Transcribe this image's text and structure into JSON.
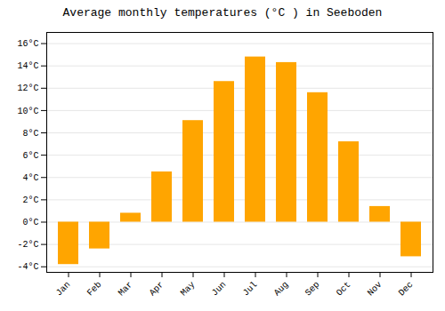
{
  "chart_data": {
    "type": "bar",
    "title": "Average monthly temperatures (°C ) in Seeboden",
    "categories": [
      "Jan",
      "Feb",
      "Mar",
      "Apr",
      "May",
      "Jun",
      "Jul",
      "Aug",
      "Sep",
      "Oct",
      "Nov",
      "Dec"
    ],
    "values": [
      -3.8,
      -2.4,
      0.8,
      4.5,
      9.1,
      12.6,
      14.8,
      14.3,
      11.6,
      7.2,
      1.4,
      -3.1
    ],
    "color": "#FFA500",
    "ylim": [
      -4.5,
      17.0
    ],
    "yticks": [
      {
        "value": -4,
        "label": "-4°C"
      },
      {
        "value": -2,
        "label": "-2°C"
      },
      {
        "value": 0,
        "label": "0°C"
      },
      {
        "value": 2,
        "label": "2°C"
      },
      {
        "value": 4,
        "label": "4°C"
      },
      {
        "value": 6,
        "label": "6°C"
      },
      {
        "value": 8,
        "label": "8°C"
      },
      {
        "value": 10,
        "label": "10°C"
      },
      {
        "value": 12,
        "label": "12°C"
      },
      {
        "value": 14,
        "label": "14°C"
      },
      {
        "value": 16,
        "label": "16°C"
      }
    ],
    "grid": true
  }
}
